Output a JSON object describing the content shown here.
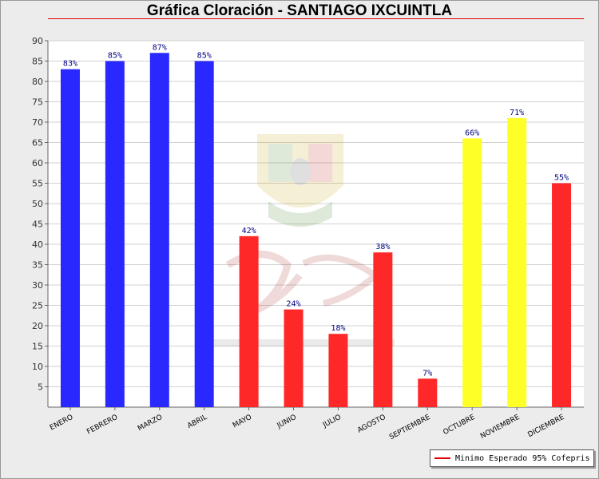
{
  "title": "Gráfica Cloración - SANTIAGO IXCUINTLA",
  "chart_data": {
    "type": "bar",
    "title": "Gráfica Cloración - SANTIAGO IXCUINTLA",
    "xlabel": "",
    "ylabel": "",
    "ylim": [
      0,
      90
    ],
    "yticks": [
      5,
      10,
      15,
      20,
      25,
      30,
      35,
      40,
      45,
      50,
      55,
      60,
      65,
      70,
      75,
      80,
      85,
      90
    ],
    "grid": true,
    "categories": [
      "ENERO",
      "FEBRERO",
      "MARZO",
      "ABRIL",
      "MAYO",
      "JUNIO",
      "JULIO",
      "AGOSTO",
      "SEPTIEMBRE",
      "OCTUBRE",
      "NOVIEMBRE",
      "DICIEMBRE"
    ],
    "values": [
      83,
      85,
      87,
      85,
      42,
      24,
      18,
      38,
      7,
      66,
      71,
      55
    ],
    "data_labels": [
      "83%",
      "85%",
      "87%",
      "85%",
      "42%",
      "24%",
      "18%",
      "38%",
      "7%",
      "66%",
      "71%",
      "55%"
    ],
    "bar_colors": [
      "#2828ff",
      "#2828ff",
      "#2828ff",
      "#2828ff",
      "#ff2828",
      "#ff2828",
      "#ff2828",
      "#ff2828",
      "#ff2828",
      "#ffff28",
      "#ffff28",
      "#ff2828"
    ],
    "legend": {
      "position": "bottom-right",
      "entries": [
        {
          "label": "Minimo Esperado 95% Cofepris",
          "color": "#e00000"
        }
      ]
    }
  }
}
